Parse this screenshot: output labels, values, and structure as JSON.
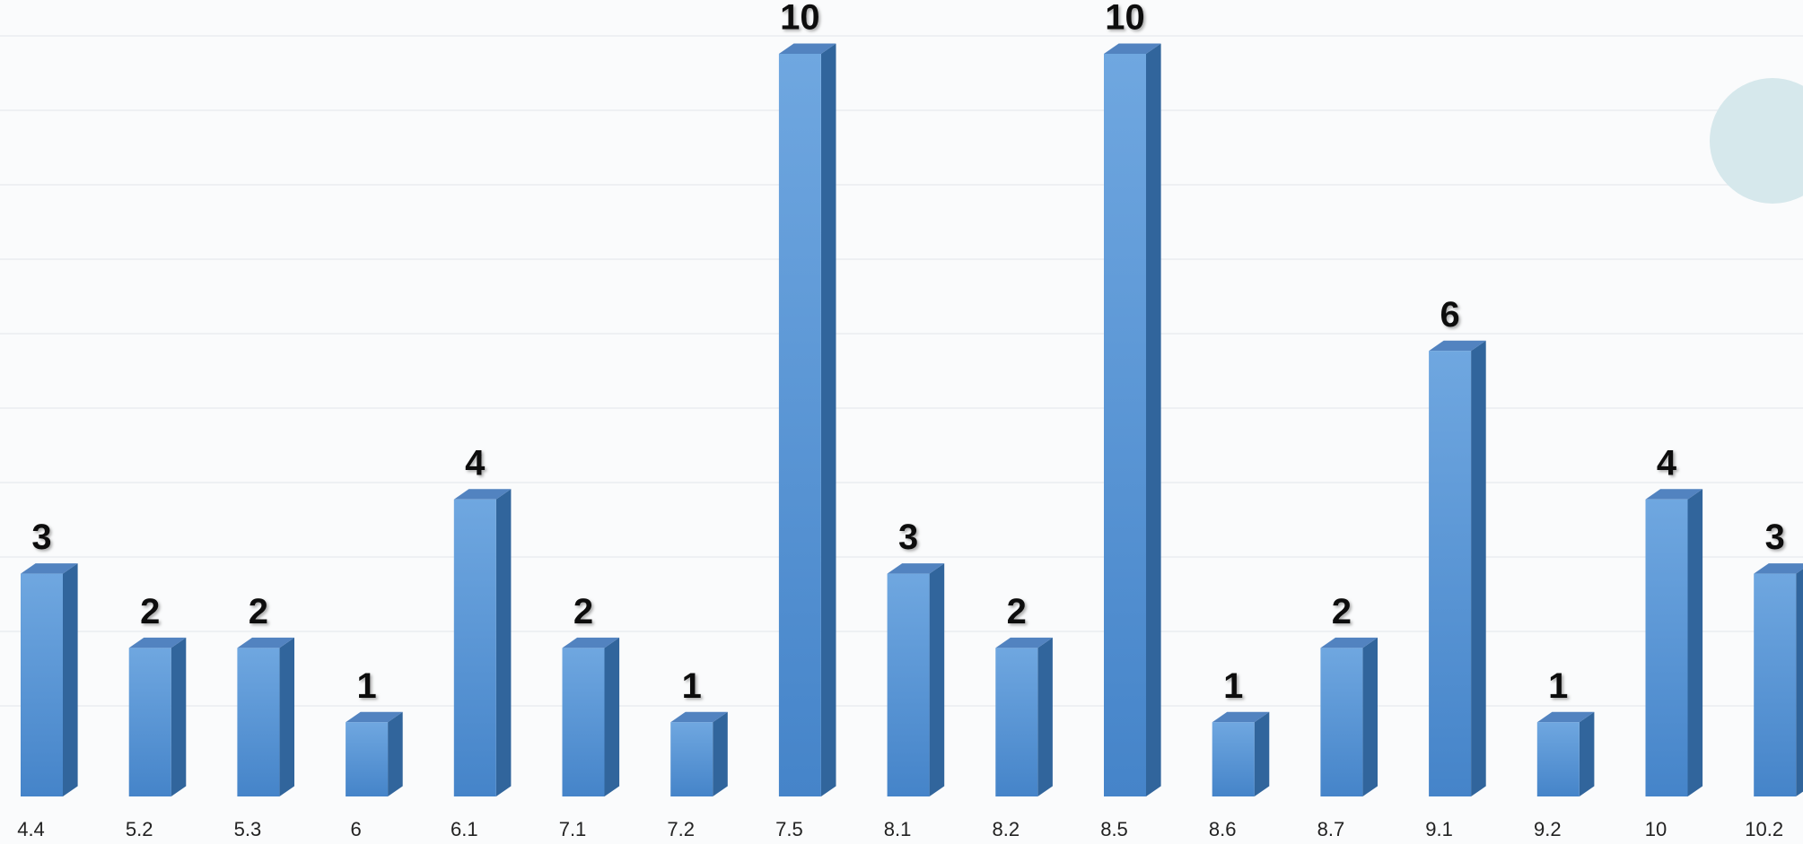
{
  "chart_data": {
    "type": "bar",
    "categories": [
      "4.4",
      "5.2",
      "5.3",
      "6",
      "6.1",
      "7.1",
      "7.2",
      "7.5",
      "8.1",
      "8.2",
      "8.5",
      "8.6",
      "8.7",
      "9.1",
      "9.2",
      "10",
      "10.2"
    ],
    "values": [
      3,
      2,
      2,
      1,
      4,
      2,
      1,
      10,
      3,
      2,
      10,
      1,
      2,
      6,
      1,
      4,
      3
    ],
    "color": "#5b9bd5"
  }
}
